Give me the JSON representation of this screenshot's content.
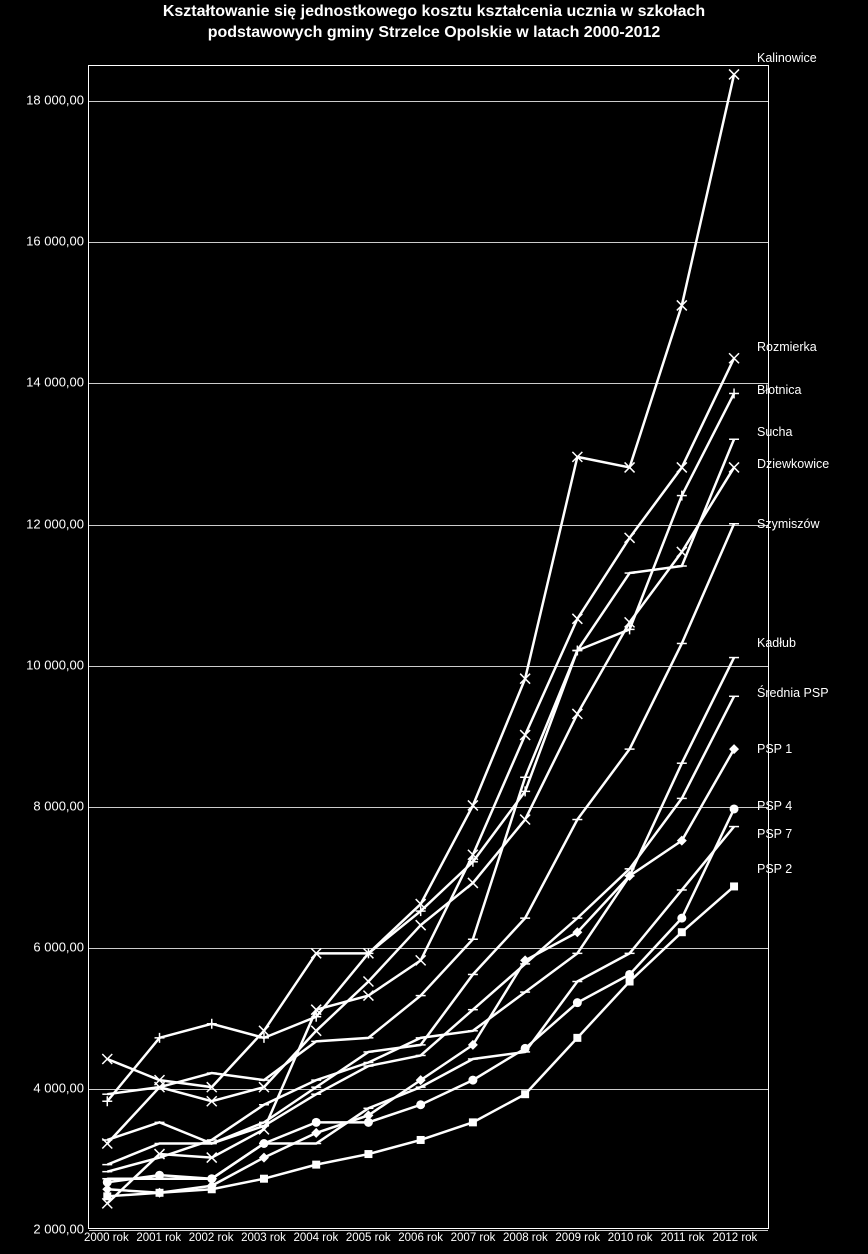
{
  "chart": {
    "type": "line",
    "title_line1": "Kształtowanie się jednostkowego kosztu kształcenia ucznia w szkołach",
    "title_line2": "podstawowych gminy Strzelce Opolskie w latach 2000-2012",
    "title_fontsize": 16,
    "title_fontweight": "bold",
    "background_color": "#000000",
    "line_color": "#ffffff",
    "text_color": "#ffffff",
    "grid_color": "#ffffff",
    "line_width": 2.5,
    "ylim": [
      2000,
      18500
    ],
    "ytick_step": 2000,
    "yticks": [
      {
        "value": 2000,
        "label": "2 000,00"
      },
      {
        "value": 4000,
        "label": "4 000,00"
      },
      {
        "value": 6000,
        "label": "6 000,00"
      },
      {
        "value": 8000,
        "label": "8 000,00"
      },
      {
        "value": 10000,
        "label": "10 000,00"
      },
      {
        "value": 12000,
        "label": "12 000,00"
      },
      {
        "value": 14000,
        "label": "14 000,00"
      },
      {
        "value": 16000,
        "label": "16 000,00"
      },
      {
        "value": 18000,
        "label": "18 000,00"
      }
    ],
    "x_categories": [
      "2000 rok",
      "2001 rok",
      "2002 rok",
      "2003 rok",
      "2004 rok",
      "2005 rok",
      "2006 rok",
      "2007 rok",
      "2008 rok",
      "2009 rok",
      "2010 rok",
      "2011 rok",
      "2012 rok"
    ],
    "label_fontsize": 13,
    "xlabel_fontsize": 11.5,
    "series_label_fontsize": 12.5,
    "series": [
      {
        "name": "Kalinowice",
        "marker": "x",
        "values": [
          4400,
          4100,
          4000,
          4800,
          5900,
          5900,
          6600,
          8000,
          9800,
          12950,
          12800,
          15100,
          18380
        ],
        "label_y": 18600
      },
      {
        "name": "Rozmierka",
        "marker": "x",
        "values": [
          2350,
          3050,
          3000,
          3400,
          5100,
          5300,
          5800,
          7300,
          9000,
          10650,
          11800,
          12800,
          14350
        ],
        "label_y": 14500
      },
      {
        "name": "Błotnica",
        "marker": "plus",
        "values": [
          3800,
          4700,
          4900,
          4700,
          5000,
          5900,
          6500,
          7200,
          8200,
          10200,
          10500,
          12400,
          13850
        ],
        "label_y": 13900
      },
      {
        "name": "Sucha",
        "marker": "dash",
        "values": [
          3900,
          4000,
          4200,
          4100,
          4650,
          4700,
          5300,
          6100,
          8400,
          10200,
          11300,
          11400,
          13200
        ],
        "label_y": 13300
      },
      {
        "name": "Dziewkowice",
        "marker": "x",
        "values": [
          3200,
          4000,
          3800,
          4000,
          4800,
          5500,
          6300,
          6900,
          7800,
          9300,
          10600,
          11600,
          12800
        ],
        "label_y": 12850
      },
      {
        "name": "Szymiszów",
        "marker": "dash",
        "values": [
          3250,
          3500,
          3200,
          3500,
          4000,
          4500,
          4600,
          5600,
          6400,
          7800,
          8800,
          10300,
          12000
        ],
        "label_y": 12000
      },
      {
        "name": "Kadłub",
        "marker": "dash",
        "values": [
          2800,
          3000,
          3250,
          3750,
          4100,
          4350,
          4700,
          4800,
          5350,
          5900,
          7000,
          8600,
          10100
        ],
        "label_y": 10300
      },
      {
        "name": "Średnia PSP",
        "marker": "dash",
        "values": [
          2900,
          3200,
          3200,
          3450,
          3900,
          4300,
          4450,
          5100,
          5750,
          6400,
          7100,
          8100,
          9550
        ],
        "label_y": 9600
      },
      {
        "name": "PSP 1",
        "marker": "diamond",
        "values": [
          2550,
          2500,
          2600,
          3000,
          3350,
          3600,
          4100,
          4600,
          5800,
          6200,
          7000,
          7500,
          8800
        ],
        "label_y": 8800
      },
      {
        "name": "PSP 4",
        "marker": "circle",
        "values": [
          2650,
          2750,
          2700,
          3200,
          3500,
          3500,
          3750,
          4100,
          4550,
          5200,
          5600,
          6400,
          7950
        ],
        "label_y": 8000
      },
      {
        "name": "PSP 7",
        "marker": "dash",
        "values": [
          2700,
          2700,
          2700,
          3200,
          3200,
          3700,
          4000,
          4400,
          4500,
          5500,
          5900,
          6800,
          7700
        ],
        "label_y": 7600
      },
      {
        "name": "PSP 2",
        "marker": "square",
        "values": [
          2450,
          2500,
          2550,
          2700,
          2900,
          3050,
          3250,
          3500,
          3900,
          4700,
          5500,
          6200,
          6850
        ],
        "label_y": 7100
      }
    ]
  }
}
